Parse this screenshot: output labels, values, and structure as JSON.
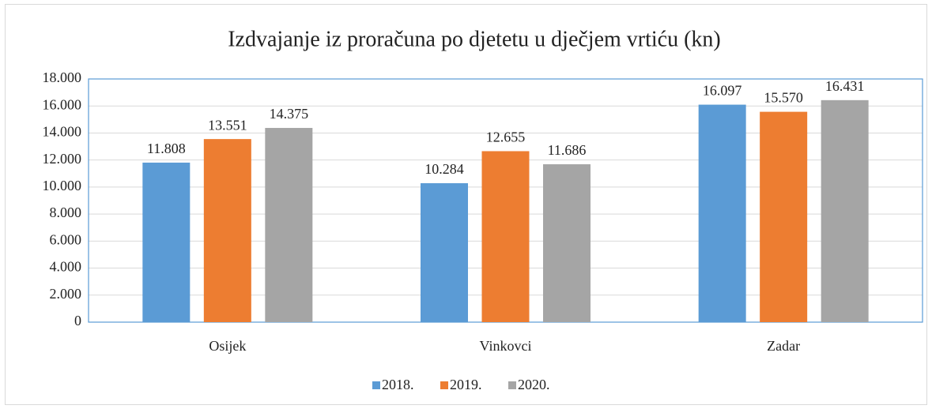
{
  "chart_data": {
    "type": "bar",
    "title": "Izdvajanje iz proračuna po djetetu u dječjem vrtiću (kn)",
    "categories": [
      "Osijek",
      "Vinkovci",
      "Zadar"
    ],
    "series": [
      {
        "name": "2018.",
        "color": "#5b9bd5",
        "values": [
          11808,
          10284,
          16097
        ],
        "value_labels": [
          "11.808",
          "10.284",
          "16.097"
        ]
      },
      {
        "name": "2019.",
        "color": "#ed7d31",
        "values": [
          13551,
          12655,
          15570
        ],
        "value_labels": [
          "13.551",
          "12.655",
          "15.570"
        ]
      },
      {
        "name": "2020.",
        "color": "#a5a5a5",
        "values": [
          14375,
          11686,
          16431
        ],
        "value_labels": [
          "14.375",
          "11.686",
          "16.431"
        ]
      }
    ],
    "ylim": [
      0,
      18000
    ],
    "yticks": [
      0,
      {
        "value": 2000,
        "label": "2.000"
      },
      {
        "value": 4000,
        "label": "4.000"
      },
      {
        "value": 6000,
        "label": "6.000"
      },
      {
        "value": 8000,
        "label": "8.000"
      },
      {
        "value": 10000,
        "label": "10.000"
      },
      {
        "value": 12000,
        "label": "12.000"
      },
      {
        "value": 14000,
        "label": "14.000"
      },
      {
        "value": 16000,
        "label": "16.000"
      },
      {
        "value": 18000,
        "label": "18.000"
      }
    ],
    "grid": true,
    "legend": "bottom"
  }
}
